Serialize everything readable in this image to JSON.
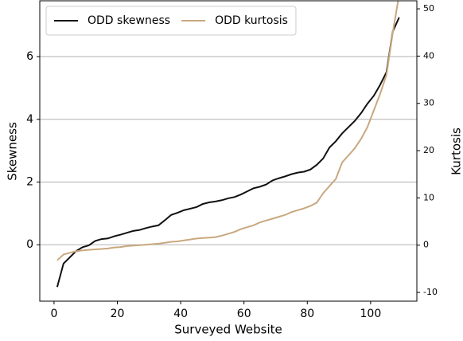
{
  "chart_data": {
    "type": "line",
    "xlabel": "Surveyed Website",
    "ylabel": "Skewness",
    "y2label": "Kurtosis",
    "x": [
      1,
      3,
      5,
      7,
      9,
      11,
      13,
      15,
      17,
      19,
      21,
      23,
      25,
      27,
      29,
      31,
      33,
      35,
      37,
      39,
      41,
      43,
      45,
      47,
      49,
      51,
      53,
      55,
      57,
      59,
      61,
      63,
      65,
      67,
      69,
      71,
      73,
      75,
      77,
      79,
      81,
      83,
      85,
      87,
      89,
      91,
      93,
      95,
      97,
      99,
      101,
      103,
      105,
      107,
      109
    ],
    "series": [
      {
        "name": "ODD skewness",
        "color": "#111111",
        "values": [
          -1.35,
          -0.6,
          -0.4,
          -0.2,
          -0.08,
          -0.02,
          0.12,
          0.18,
          0.2,
          0.27,
          0.32,
          0.38,
          0.44,
          0.47,
          0.53,
          0.58,
          0.62,
          0.78,
          0.95,
          1.02,
          1.1,
          1.15,
          1.2,
          1.3,
          1.35,
          1.38,
          1.42,
          1.48,
          1.52,
          1.6,
          1.7,
          1.8,
          1.85,
          1.92,
          2.05,
          2.12,
          2.18,
          2.25,
          2.3,
          2.33,
          2.4,
          2.55,
          2.75,
          3.1,
          3.3,
          3.55,
          3.75,
          3.95,
          4.2,
          4.5,
          4.75,
          5.1,
          5.5,
          6.8,
          7.25
        ]
      },
      {
        "name": "ODD kurtosis",
        "color": "#c9a87f",
        "axis": "y2",
        "values": [
          -3.2,
          -2.0,
          -1.6,
          -1.3,
          -1.1,
          -1.0,
          -0.9,
          -0.8,
          -0.7,
          -0.5,
          -0.4,
          -0.2,
          -0.1,
          0,
          0.1,
          0.2,
          0.3,
          0.5,
          0.7,
          0.8,
          1.0,
          1.2,
          1.4,
          1.5,
          1.6,
          1.7,
          2.0,
          2.4,
          2.8,
          3.4,
          3.8,
          4.2,
          4.8,
          5.2,
          5.6,
          6.0,
          6.4,
          7.0,
          7.4,
          7.8,
          8.3,
          9.0,
          11.0,
          12.5,
          14.0,
          17.5,
          19.0,
          20.5,
          22.5,
          25.0,
          28.5,
          32.0,
          36.0,
          45.0,
          53.0
        ]
      }
    ],
    "xlim": [
      -4.5,
      114.6
    ],
    "xticks": [
      0,
      20,
      40,
      60,
      80,
      100
    ],
    "ylim": [
      -1.8,
      7.78
    ],
    "yticks": [
      0,
      2,
      4,
      6
    ],
    "y2lim": [
      -11.85,
      51.7
    ],
    "y2ticks": [
      -10,
      0,
      10,
      20,
      30,
      40,
      50
    ],
    "grid": true,
    "legend": "upper left"
  }
}
